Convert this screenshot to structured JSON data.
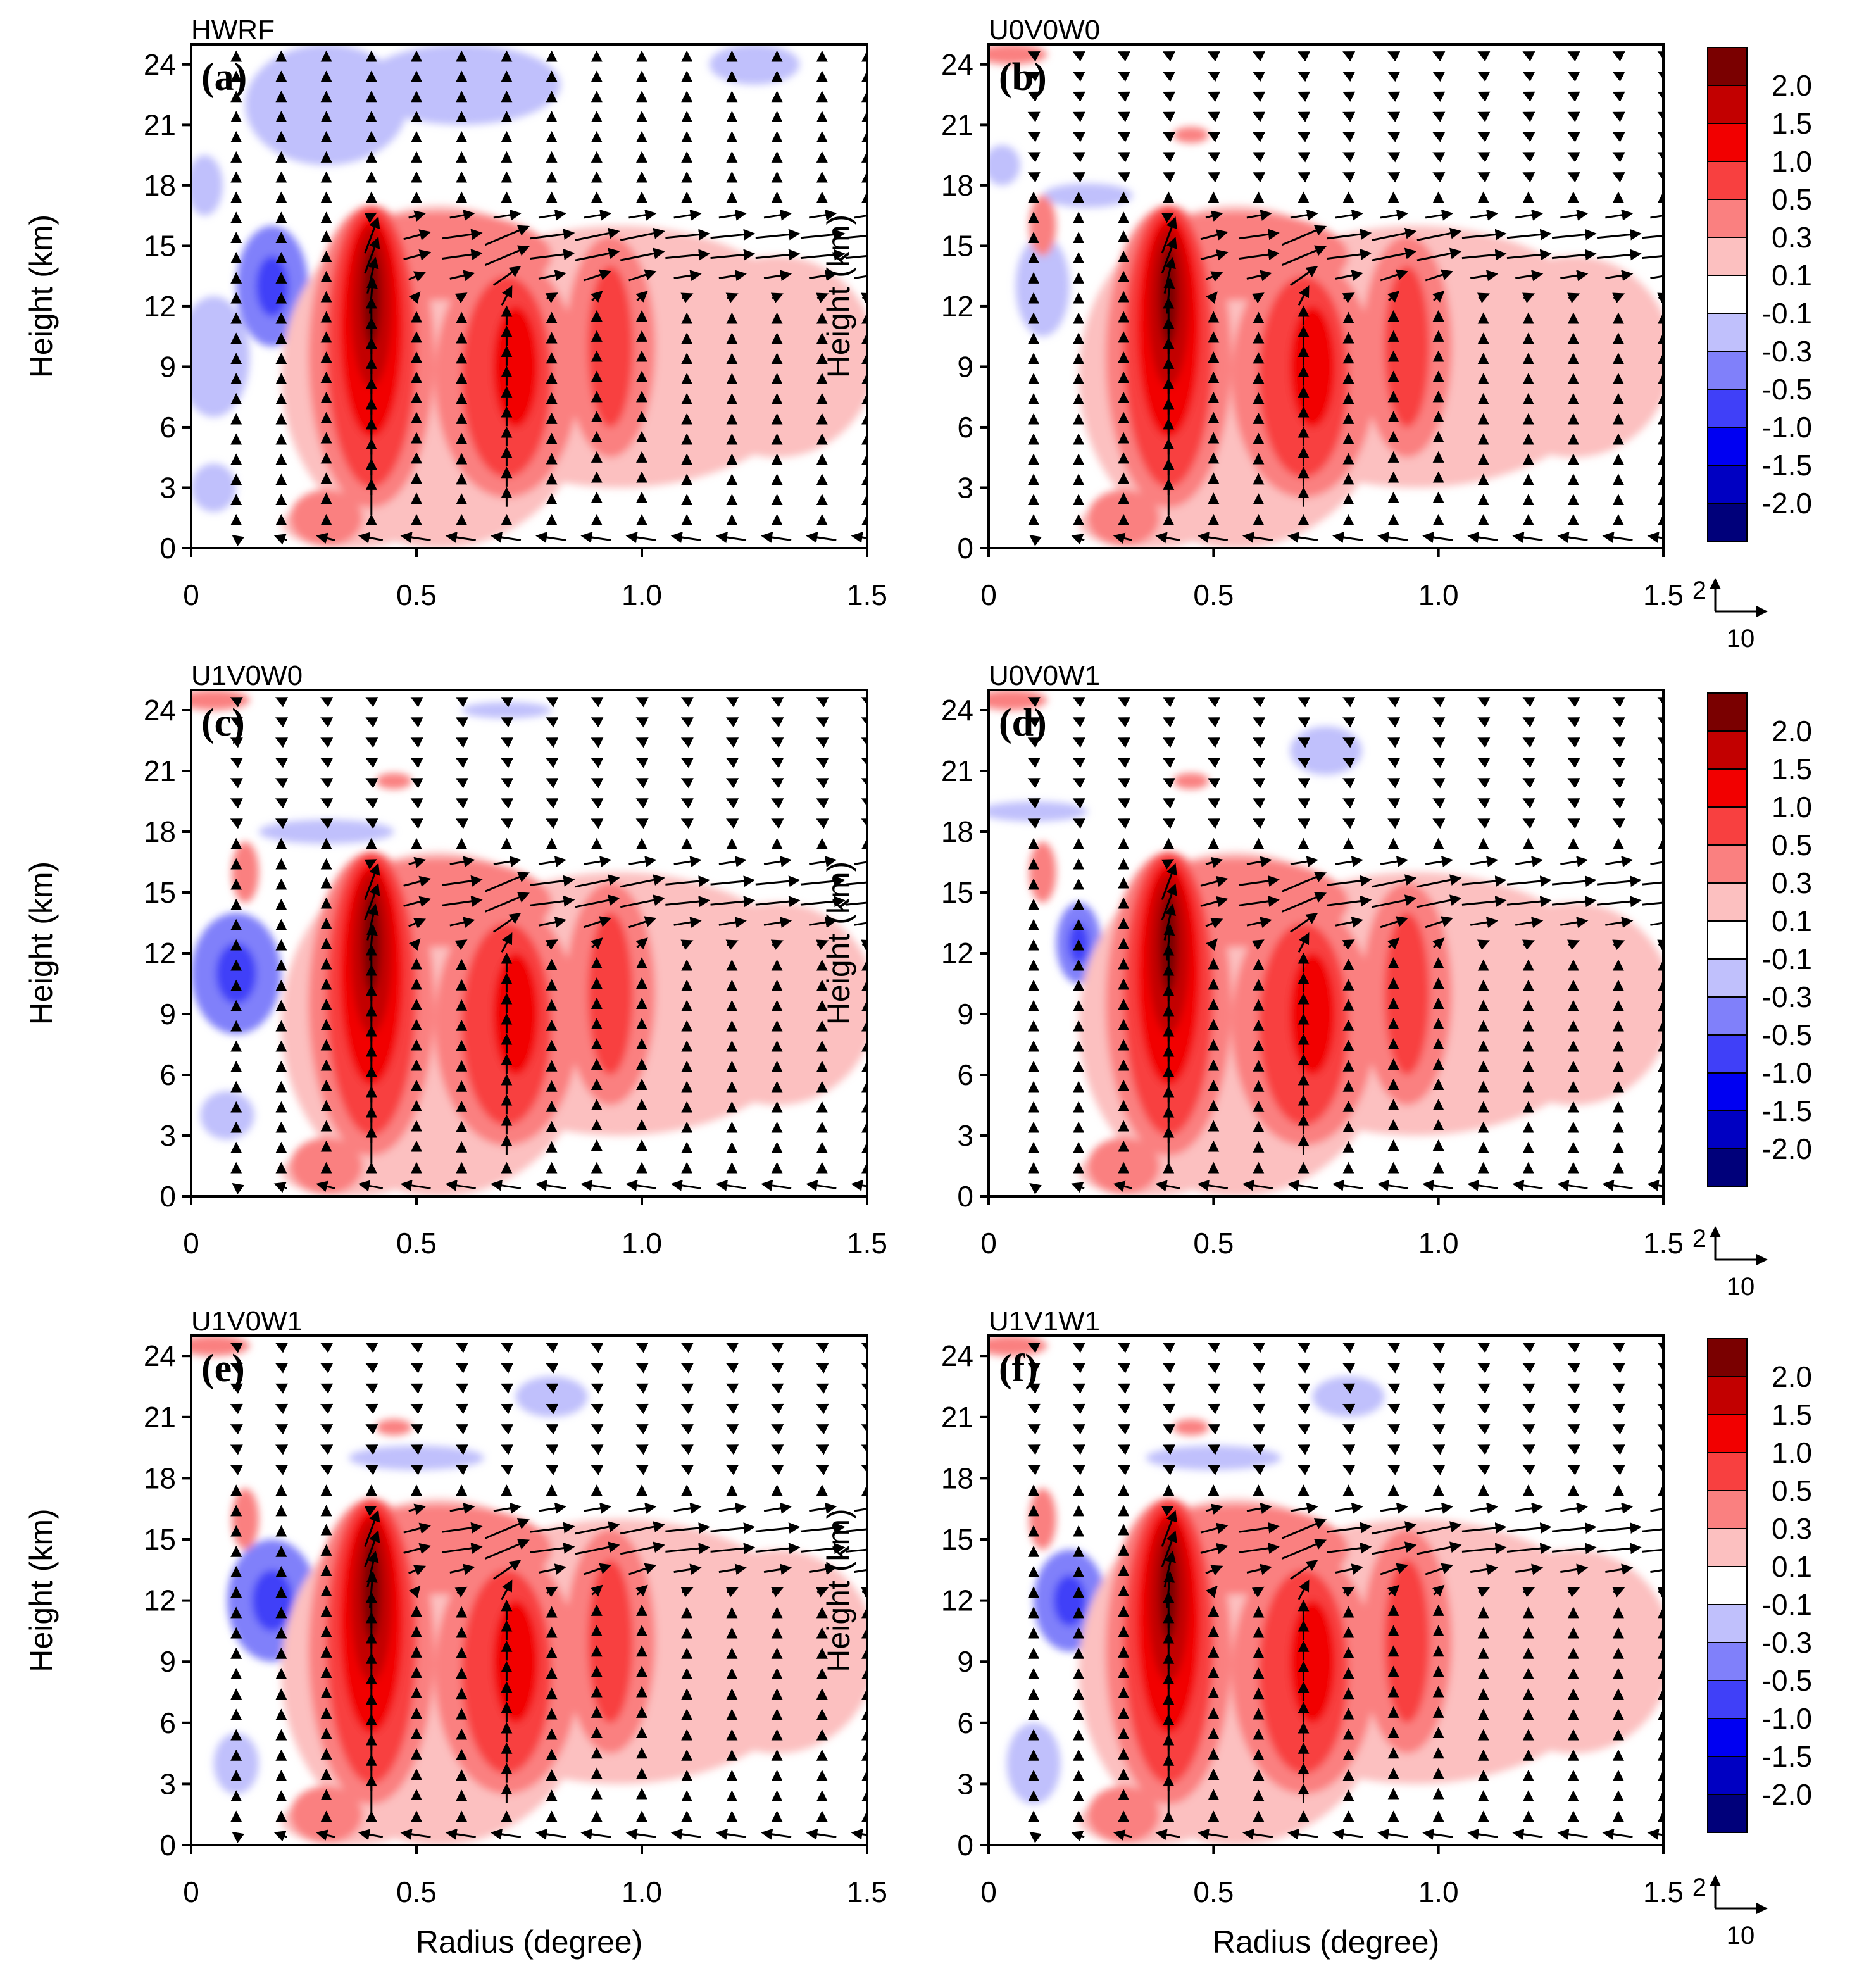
{
  "chart_data": {
    "type": "heatmap",
    "description_fields": {
      "xlabel": "Radius (degree)",
      "ylabel": "Height (km)"
    },
    "xlim": [
      0,
      1.5
    ],
    "ylim": [
      0,
      25
    ],
    "x_ticks": [
      "0",
      "0.5",
      "1.0",
      "1.5"
    ],
    "x_tick_values": [
      0,
      0.5,
      1.0,
      1.5
    ],
    "y_ticks": [
      "0",
      "3",
      "6",
      "9",
      "12",
      "15",
      "18",
      "21",
      "24"
    ],
    "y_tick_values": [
      0,
      3,
      6,
      9,
      12,
      15,
      18,
      21,
      24
    ],
    "colorbar": {
      "labels": [
        "2.0",
        "1.5",
        "1.0",
        "0.5",
        "0.3",
        "0.1",
        "-0.1",
        "-0.3",
        "-0.5",
        "-1.0",
        "-1.5",
        "-2.0"
      ],
      "colors": [
        "#7a0000",
        "#c20000",
        "#f20000",
        "#f84040",
        "#fa8080",
        "#fcc0c0",
        "#ffffff",
        "#c0c0fc",
        "#8080fa",
        "#4040f8",
        "#0000f2",
        "#0000c2",
        "#00007a"
      ]
    },
    "reference_vector": {
      "vertical": "2",
      "horizontal": "10"
    },
    "panels": [
      {
        "label": "(a)",
        "title": "HWRF"
      },
      {
        "label": "(b)",
        "title": "U0V0W0"
      },
      {
        "label": "(c)",
        "title": "U1V0W0"
      },
      {
        "label": "(d)",
        "title": "U0V0W1"
      },
      {
        "label": "(e)",
        "title": "U1V0W1"
      },
      {
        "label": "(f)",
        "title": "U1V1W1"
      }
    ],
    "features": {
      "main_updraft_radius_deg": 0.4,
      "main_updraft_height_km": [
        1,
        17
      ],
      "secondary_updrafts_radius_deg": [
        0.7,
        0.95
      ],
      "outflow_layer_km": [
        13,
        17
      ],
      "low_level_inflow_km": [
        0,
        1
      ]
    }
  }
}
